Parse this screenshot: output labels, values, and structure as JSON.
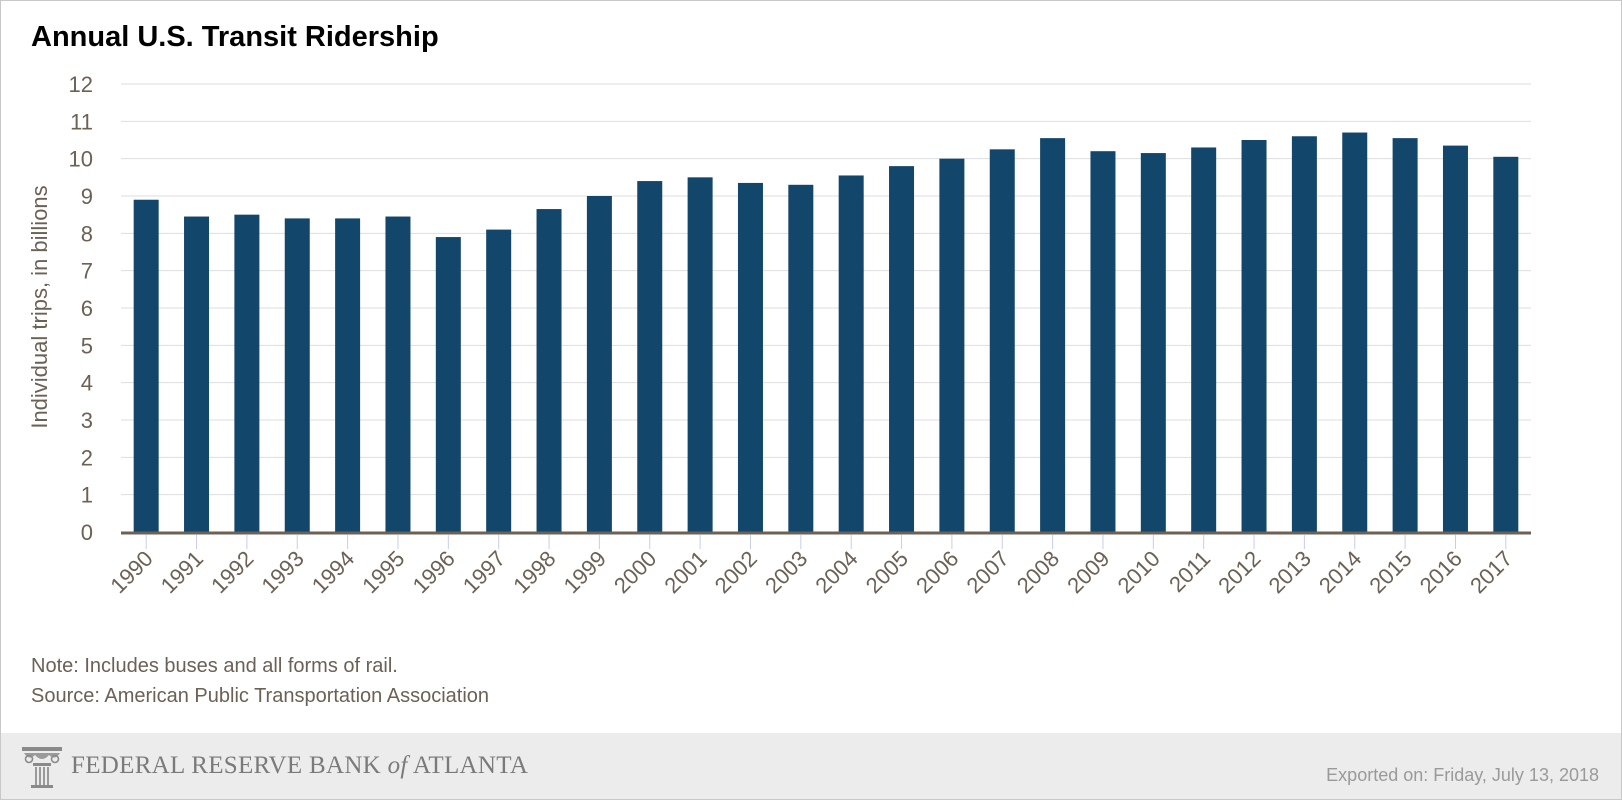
{
  "chart_data": {
    "type": "bar",
    "title": "Annual U.S. Transit Ridership",
    "ylabel": "Individual trips, in billions",
    "xlabel": "",
    "ylim": [
      0,
      12
    ],
    "yticks": [
      0,
      1,
      2,
      3,
      4,
      5,
      6,
      7,
      8,
      9,
      10,
      11,
      12
    ],
    "grid": true,
    "categories": [
      "1990",
      "1991",
      "1992",
      "1993",
      "1994",
      "1995",
      "1996",
      "1997",
      "1998",
      "1999",
      "2000",
      "2001",
      "2002",
      "2003",
      "2004",
      "2005",
      "2006",
      "2007",
      "2008",
      "2009",
      "2010",
      "2011",
      "2012",
      "2013",
      "2014",
      "2015",
      "2016",
      "2017"
    ],
    "values": [
      8.9,
      8.45,
      8.5,
      8.4,
      8.4,
      8.45,
      7.9,
      8.1,
      8.65,
      9.0,
      9.4,
      9.5,
      9.35,
      9.3,
      9.55,
      9.8,
      10.0,
      10.25,
      10.55,
      10.2,
      10.15,
      10.3,
      10.5,
      10.6,
      10.7,
      10.55,
      10.35,
      10.05
    ],
    "bar_color": "#12466b"
  },
  "notes": {
    "note": "Note: Includes buses and all forms of rail.",
    "source": "Source: American Public Transportation Association"
  },
  "footer": {
    "logo_prefix": "FEDERAL RESERVE BANK",
    "logo_of": "of",
    "logo_suffix": "ATLANTA",
    "logo_icon": "column-capital-icon",
    "exported": "Exported on: Friday, July 13, 2018"
  }
}
